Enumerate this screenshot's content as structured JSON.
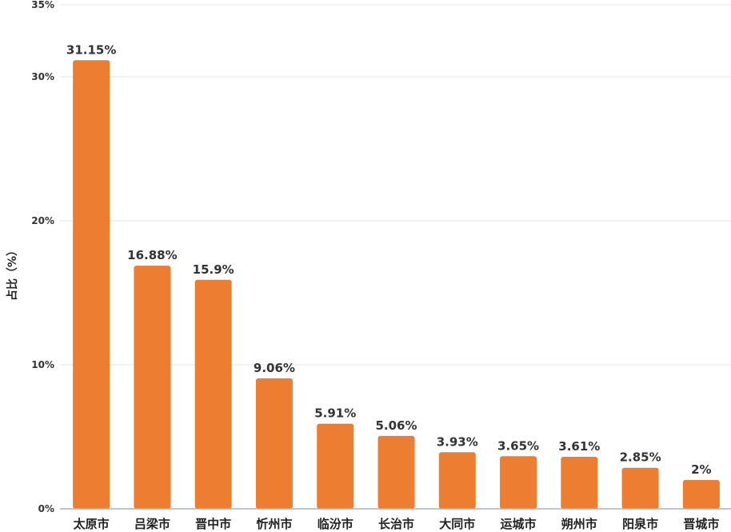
{
  "chart_data": {
    "type": "bar",
    "categories": [
      "太原市",
      "吕梁市",
      "晋中市",
      "忻州市",
      "临汾市",
      "长治市",
      "大同市",
      "运城市",
      "朔州市",
      "阳泉市",
      "晋城市"
    ],
    "values": [
      31.15,
      16.88,
      15.9,
      9.06,
      5.91,
      5.06,
      3.93,
      3.65,
      3.61,
      2.85,
      2
    ],
    "data_labels": [
      "31.15%",
      "16.88%",
      "15.9%",
      "9.06%",
      "5.91%",
      "5.06%",
      "3.93%",
      "3.65%",
      "3.61%",
      "2.85%",
      "2%"
    ],
    "ylabel": "占比（%）",
    "ylim": [
      0,
      35
    ],
    "yticks": [
      0,
      10,
      20,
      30,
      35
    ],
    "ytick_labels": [
      "0%",
      "10%",
      "20%",
      "30%",
      "35%"
    ],
    "grid": true,
    "legend": "none",
    "colors": {
      "bar": "#ED7D31",
      "grid": "#E6E6E6",
      "axis": "#A9B4C2"
    }
  }
}
